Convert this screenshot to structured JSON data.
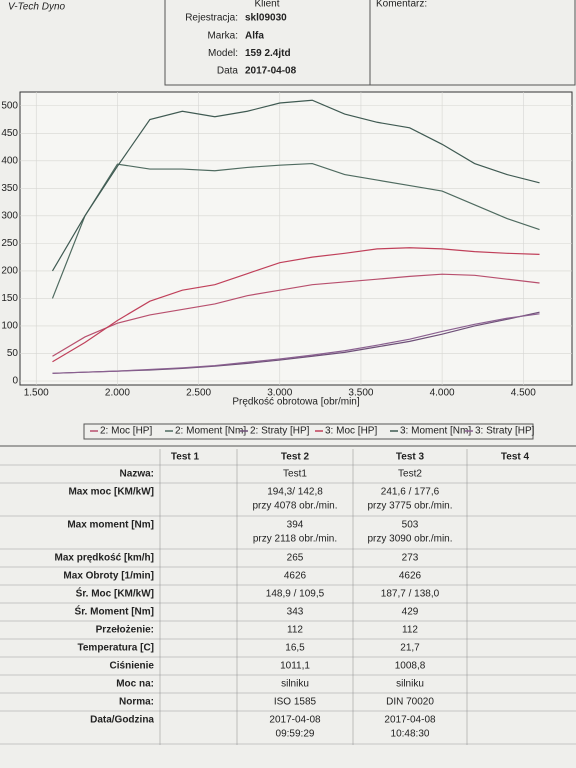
{
  "header": {
    "brand": "V-Tech Dyno",
    "client": "Klient",
    "comment": "Komentarz:",
    "fields": [
      {
        "label": "Rejestracja:",
        "value": "skl09030"
      },
      {
        "label": "Marka:",
        "value": "Alfa"
      },
      {
        "label": "Model:",
        "value": "159 2.4jtd"
      },
      {
        "label": "Data",
        "value": "2017-04-08"
      }
    ]
  },
  "chart_data": {
    "type": "line",
    "x_label": "Prędkość obrotowa [obr/min]",
    "x": [
      1600,
      1800,
      2000,
      2200,
      2400,
      2600,
      2800,
      3000,
      3200,
      3400,
      3600,
      3800,
      4000,
      4200,
      4400,
      4600
    ],
    "xlim": [
      1400,
      4800
    ],
    "xticks": [
      {
        "value": 1500,
        "label": "1.500"
      },
      {
        "value": 2000,
        "label": "2.000"
      },
      {
        "value": 2500,
        "label": "2.500"
      },
      {
        "value": 3000,
        "label": "3.000"
      },
      {
        "value": 3500,
        "label": "3.500"
      },
      {
        "value": 4000,
        "label": "4.000"
      },
      {
        "value": 4500,
        "label": "4.500"
      }
    ],
    "ylim": [
      0,
      525
    ],
    "yticks": [
      0,
      50,
      100,
      150,
      200,
      250,
      300,
      350,
      400,
      450,
      500
    ],
    "series": [
      {
        "name": "2: Moc [HP]",
        "color": "#b8506e",
        "values": [
          45,
          80,
          105,
          120,
          130,
          140,
          155,
          165,
          175,
          180,
          185,
          190,
          194,
          192,
          185,
          178
        ]
      },
      {
        "name": "2: Moment [Nm]",
        "color": "#4f6b60",
        "values": [
          150,
          300,
          394,
          385,
          385,
          382,
          388,
          392,
          395,
          375,
          365,
          355,
          345,
          320,
          295,
          275
        ]
      },
      {
        "name": "2: Straty [HP]",
        "color": "#6e5078",
        "values": [
          14,
          16,
          18,
          20,
          23,
          27,
          32,
          38,
          45,
          52,
          62,
          72,
          85,
          100,
          112,
          125
        ]
      },
      {
        "name": "3: Moc [HP]",
        "color": "#c0405a",
        "values": [
          35,
          70,
          110,
          145,
          165,
          175,
          195,
          215,
          225,
          232,
          240,
          242,
          240,
          235,
          232,
          230
        ]
      },
      {
        "name": "3: Moment [Nm]",
        "color": "#3f5a52",
        "values": [
          200,
          300,
          390,
          475,
          490,
          480,
          490,
          505,
          510,
          485,
          470,
          460,
          430,
          395,
          375,
          360
        ]
      },
      {
        "name": "3: Straty [HP]",
        "color": "#8a6090",
        "values": [
          14,
          16,
          18,
          21,
          24,
          28,
          34,
          40,
          47,
          55,
          65,
          76,
          90,
          103,
          114,
          122
        ]
      }
    ]
  },
  "table": {
    "columns": [
      "Test 1",
      "Test 2",
      "Test 3",
      "Test 4"
    ],
    "rows": [
      {
        "label": "Nazwa:",
        "test2": [
          "Test1"
        ],
        "test3": [
          "Test2"
        ]
      },
      {
        "label": "Max moc [KM/kW]",
        "test2": [
          "194,3/ 142,8",
          "przy 4078 obr./min."
        ],
        "test3": [
          "241,6 / 177,6",
          "przy 3775 obr./min."
        ]
      },
      {
        "label": "Max moment [Nm]",
        "test2": [
          "394",
          "przy 2118 obr./min."
        ],
        "test3": [
          "503",
          "przy 3090 obr./min."
        ]
      },
      {
        "label": "Max prędkość [km/h]",
        "test2": [
          "265"
        ],
        "test3": [
          "273"
        ]
      },
      {
        "label": "Max Obroty [1/min]",
        "test2": [
          "4626"
        ],
        "test3": [
          "4626"
        ]
      },
      {
        "label": "Śr. Moc [KM/kW]",
        "test2": [
          "148,9 / 109,5"
        ],
        "test3": [
          "187,7 / 138,0"
        ]
      },
      {
        "label": "Śr. Moment [Nm]",
        "test2": [
          "343"
        ],
        "test3": [
          "429"
        ]
      },
      {
        "label": "Przełożenie:",
        "test2": [
          "112"
        ],
        "test3": [
          "112"
        ]
      },
      {
        "label": "Temperatura [C]",
        "test2": [
          "16,5"
        ],
        "test3": [
          "21,7"
        ]
      },
      {
        "label": "Ciśnienie",
        "test2": [
          "1011,1"
        ],
        "test3": [
          "1008,8"
        ]
      },
      {
        "label": "Moc na:",
        "test2": [
          "silniku"
        ],
        "test3": [
          "silniku"
        ]
      },
      {
        "label": "Norma:",
        "test2": [
          "ISO 1585"
        ],
        "test3": [
          "DIN 70020"
        ]
      },
      {
        "label": "Data/Godzina",
        "test2": [
          "2017-04-08",
          "09:59:29"
        ],
        "test3": [
          "2017-04-08",
          "10:48:30"
        ]
      }
    ]
  }
}
